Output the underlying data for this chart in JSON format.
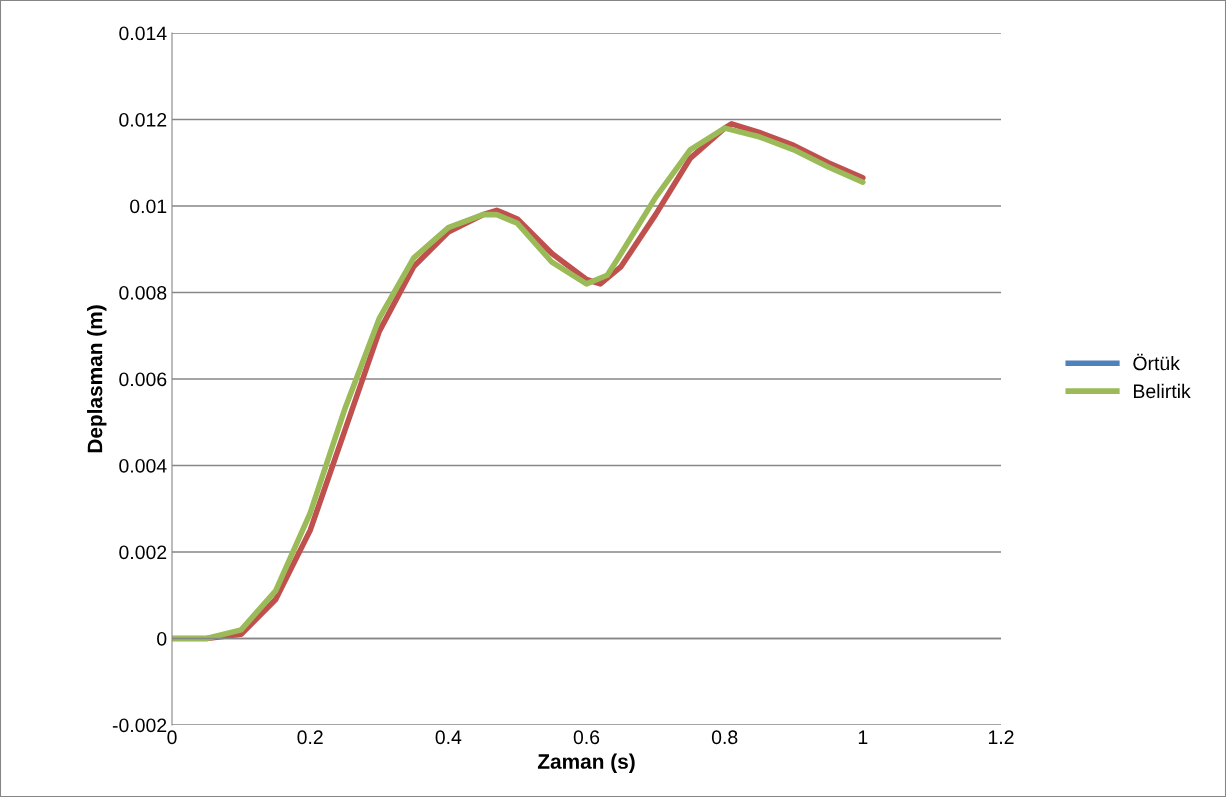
{
  "chart_data": {
    "type": "line",
    "xlabel": "Zaman (s)",
    "ylabel": "Deplasman (m)",
    "x": [
      0,
      0.05,
      0.1,
      0.15,
      0.2,
      0.25,
      0.3,
      0.35,
      0.4,
      0.45,
      0.47,
      0.5,
      0.55,
      0.6,
      0.63,
      0.65,
      0.7,
      0.75,
      0.8,
      0.85,
      0.9,
      0.95,
      1.0
    ],
    "series": [
      {
        "name": "Örtük",
        "color": "#4f81bd",
        "values": [
          null,
          null,
          null,
          null,
          null,
          null,
          null,
          null,
          null,
          null,
          null,
          null,
          null,
          null,
          null,
          null,
          null,
          null,
          null,
          null,
          null,
          null,
          null
        ]
      },
      {
        "color": "#c0504d",
        "x": [
          0,
          0.05,
          0.1,
          0.15,
          0.2,
          0.25,
          0.3,
          0.35,
          0.4,
          0.45,
          0.47,
          0.5,
          0.55,
          0.6,
          0.62,
          0.65,
          0.7,
          0.75,
          0.8,
          0.81,
          0.85,
          0.9,
          0.95,
          1.0
        ],
        "values": [
          0,
          0,
          0.0001,
          0.0009,
          0.0025,
          0.0048,
          0.0071,
          0.0086,
          0.0094,
          0.0098,
          0.0099,
          0.0097,
          0.0089,
          0.0083,
          0.0082,
          0.0086,
          0.0098,
          0.0111,
          0.0118,
          0.0119,
          0.0117,
          0.0114,
          0.011,
          0.01065
        ]
      },
      {
        "name": "Belirtik",
        "color": "#9bbb59",
        "values": [
          0,
          0,
          0.0002,
          0.0011,
          0.0029,
          0.0053,
          0.0074,
          0.0088,
          0.0095,
          0.0098,
          0.0098,
          0.0096,
          0.0087,
          0.0082,
          0.0084,
          0.0089,
          0.0102,
          0.0113,
          0.0118,
          0.0116,
          0.0113,
          0.0109,
          0.01055
        ]
      }
    ],
    "xlim": [
      0,
      1.2
    ],
    "xticks": [
      0,
      0.2,
      0.4,
      0.6,
      0.8,
      1,
      1.2
    ],
    "ylim": [
      -0.002,
      0.014
    ],
    "yticks": [
      -0.002,
      0,
      0.002,
      0.004,
      0.006,
      0.008,
      0.01,
      0.012,
      0.014
    ],
    "grid": "y",
    "legend": "right",
    "marker": "none",
    "line_style": "solid"
  }
}
